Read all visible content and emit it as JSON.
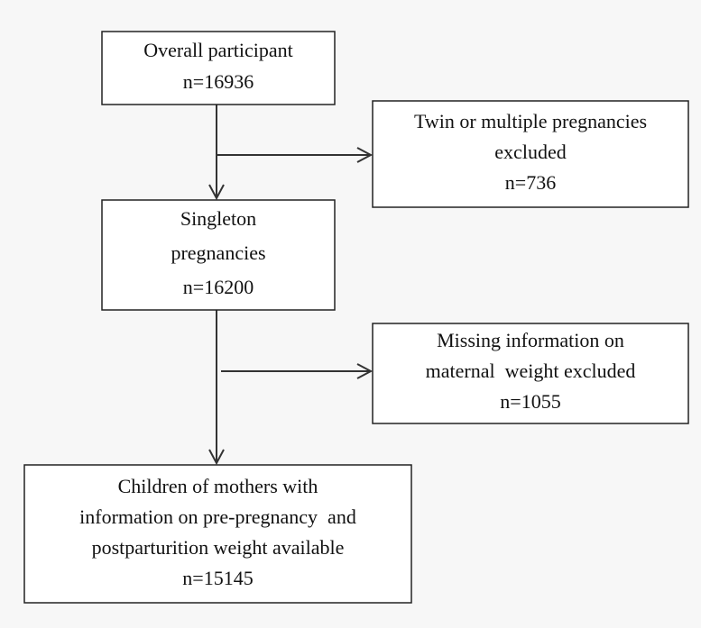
{
  "nodes": [
    {
      "lines": [
        "Overall participant",
        "n=16936"
      ]
    },
    {
      "lines": [
        "Twin or multiple pregnancies",
        "excluded",
        "n=736"
      ]
    },
    {
      "lines": [
        "Singleton",
        "pregnancies",
        "n=16200"
      ]
    },
    {
      "lines": [
        "Missing information on",
        "maternal  weight excluded",
        "n=1055"
      ]
    },
    {
      "lines": [
        "Children of mothers with",
        "information on pre-pregnancy  and",
        "postparturition weight available",
        "n=15145"
      ]
    }
  ]
}
